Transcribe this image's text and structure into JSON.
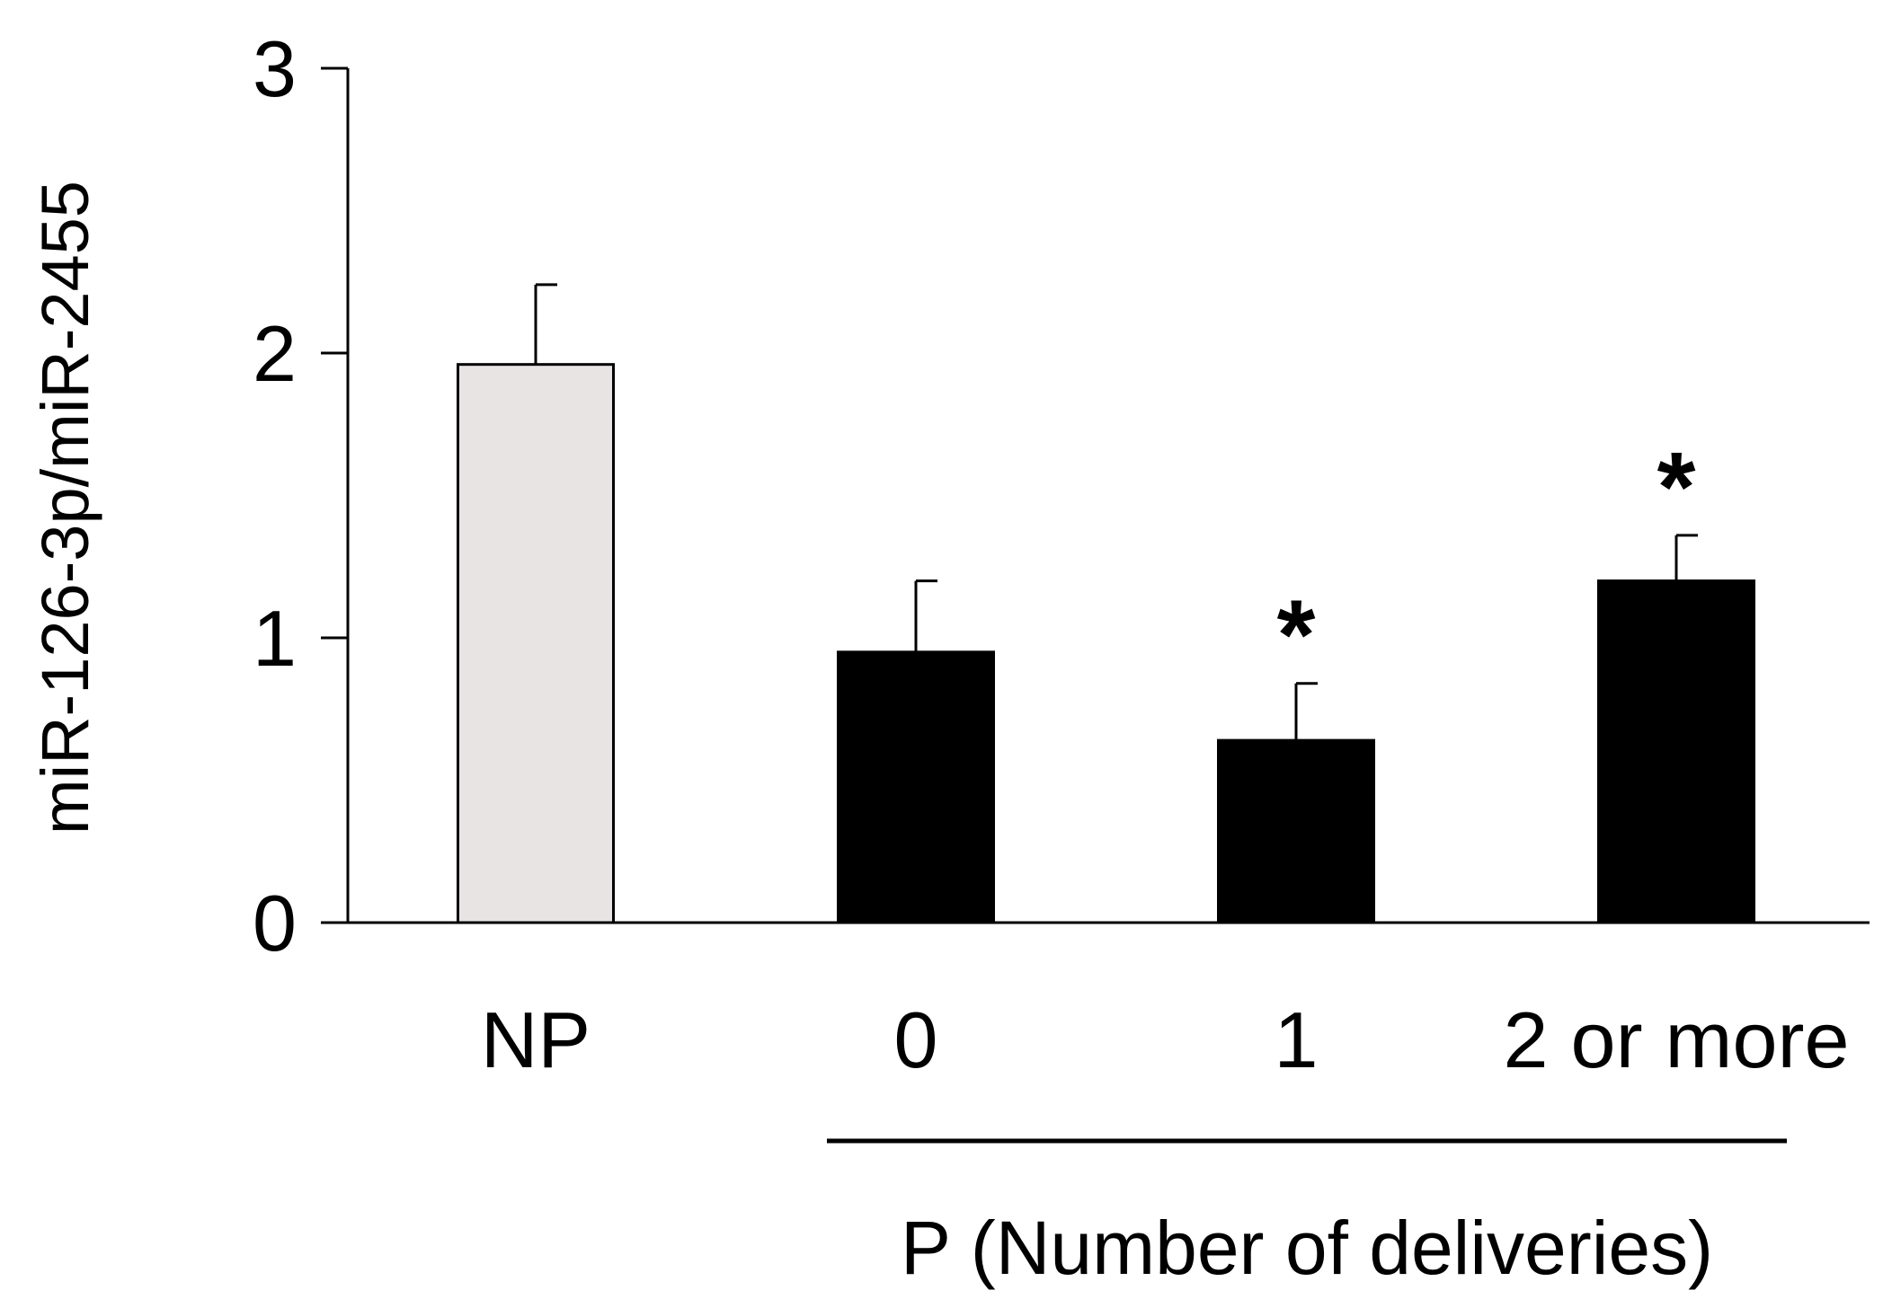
{
  "chart_data": {
    "type": "bar",
    "title": "",
    "ylabel": "miR-126-3p/miR-2455",
    "xlabel": "",
    "ylim": [
      0,
      3
    ],
    "yticks": [
      0,
      1,
      2,
      3
    ],
    "grid": false,
    "categories": [
      "NP",
      "0",
      "1",
      "2 or more"
    ],
    "values": [
      1.96,
      0.95,
      0.64,
      1.2
    ],
    "errors": [
      0.28,
      0.25,
      0.2,
      0.16
    ],
    "significance": [
      "",
      "",
      "*",
      "*"
    ],
    "bar_colors": [
      "#e8e4e4",
      "#000000",
      "#000000",
      "#000000"
    ],
    "group_label": {
      "text": "P (Number of deliveries)",
      "categories": [
        "0",
        "1",
        "2 or more"
      ]
    }
  }
}
